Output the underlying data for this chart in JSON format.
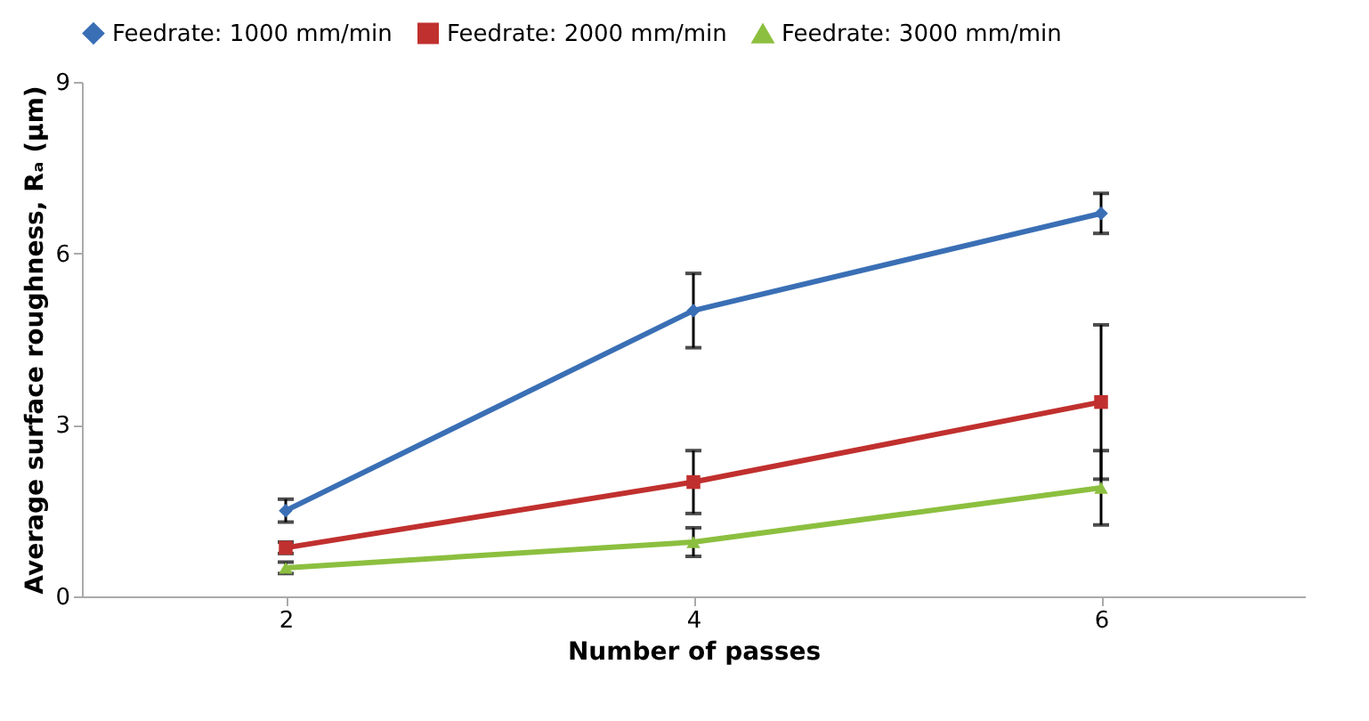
{
  "chart_data": {
    "type": "line",
    "xlabel": "Number of passes",
    "ylabel": "Average surface roughness, Rₐ (µm)",
    "categories": [
      "2",
      "4",
      "6"
    ],
    "ylim": [
      0,
      9
    ],
    "yticks": [
      0,
      3,
      6,
      9
    ],
    "grid": false,
    "legend": "top",
    "series": [
      {
        "name": "Feedrate: 1000 mm/min",
        "color": "#3a6fb5",
        "marker": "diamond",
        "values": [
          1.5,
          5.0,
          6.7
        ],
        "errors": [
          0.2,
          0.65,
          0.35
        ]
      },
      {
        "name": "Feedrate: 2000 mm/min",
        "color": "#c0302e",
        "marker": "square",
        "values": [
          0.85,
          2.0,
          3.4
        ],
        "errors": [
          0.1,
          0.55,
          1.35
        ]
      },
      {
        "name": "Feedrate: 3000 mm/min",
        "color": "#8cbf3f",
        "marker": "triangle",
        "values": [
          0.5,
          0.95,
          1.9
        ],
        "errors": [
          0.1,
          0.25,
          0.65
        ]
      }
    ]
  }
}
